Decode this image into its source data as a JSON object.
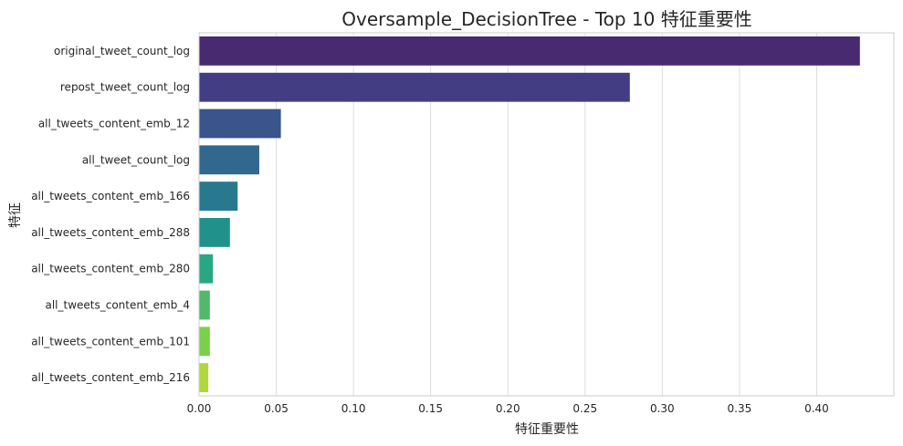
{
  "chart_data": {
    "type": "bar",
    "orientation": "horizontal",
    "title": "Oversample_DecisionTree - Top 10 特征重要性",
    "xlabel": "特征重要性",
    "ylabel": "特征",
    "categories": [
      "original_tweet_count_log",
      "repost_tweet_count_log",
      "all_tweets_content_emb_12",
      "all_tweet_count_log",
      "all_tweets_content_emb_166",
      "all_tweets_content_emb_288",
      "all_tweets_content_emb_280",
      "all_tweets_content_emb_4",
      "all_tweets_content_emb_101",
      "all_tweets_content_emb_216"
    ],
    "values": [
      0.428,
      0.279,
      0.053,
      0.039,
      0.025,
      0.02,
      0.009,
      0.007,
      0.007,
      0.006
    ],
    "colors": [
      "#472a70",
      "#433d84",
      "#3a548c",
      "#31688e",
      "#29798e",
      "#21918c",
      "#28a882",
      "#50b96b",
      "#7ccf4a",
      "#b0d83a"
    ],
    "xlim": [
      0,
      0.45
    ],
    "xticks": [
      "0.00",
      "0.05",
      "0.10",
      "0.15",
      "0.20",
      "0.25",
      "0.30",
      "0.35",
      "0.40"
    ],
    "grid": "x",
    "legend": "none"
  }
}
